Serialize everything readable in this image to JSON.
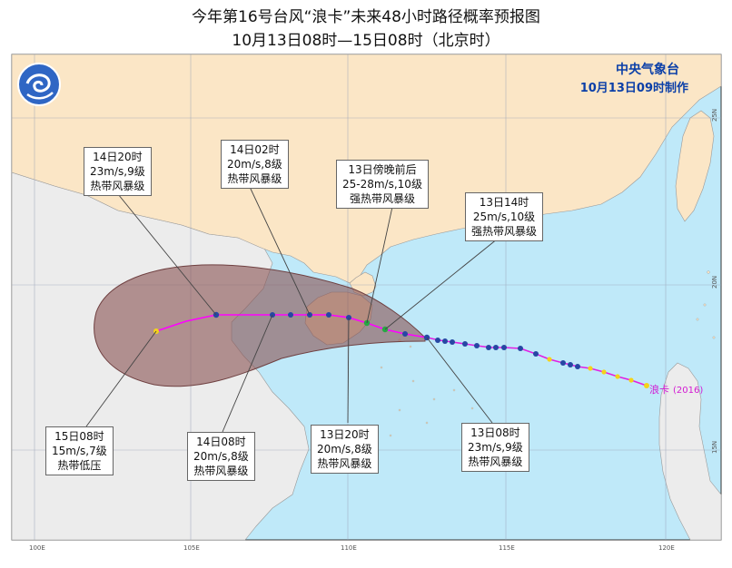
{
  "title": {
    "line1": "今年第16号台风“浪卡”未来48小时路径概率预报图",
    "line2": "10月13日08时—15日08时（北京时）"
  },
  "agency": "中央气象台",
  "issued": "10月13日09时制作",
  "typhoon_label": "浪卡",
  "typhoon_number": "(2016)",
  "lon_labels": [
    "100E",
    "105E",
    "110E",
    "115E",
    "120E"
  ],
  "lat_labels": [
    "25N",
    "20N",
    "15N"
  ],
  "colors": {
    "land": "#fbe6c6",
    "foreign_land": "#ececec",
    "sea": "#bfe9f9",
    "probability_cone": "#8a5556",
    "track_observed": "#e11fe3",
    "track_forecast": "#ff00ff",
    "point_blue": "#2647a3",
    "point_green": "#27a844",
    "point_yellow": "#f5d21a",
    "agency_text": "#0b3fa8"
  },
  "callouts": [
    {
      "id": "14d20",
      "time": "14日20时",
      "wind": "23m/s,9级",
      "grade": "热带风暴级"
    },
    {
      "id": "14d02",
      "time": "14日02时",
      "wind": "20m/s,8级",
      "grade": "热带风暴级"
    },
    {
      "id": "13dusk",
      "time": "13日傍晚前后",
      "wind": "25-28m/s,10级",
      "grade": "强热带风暴级"
    },
    {
      "id": "13d14",
      "time": "13日14时",
      "wind": "25m/s,10级",
      "grade": "强热带风暴级"
    },
    {
      "id": "15d08",
      "time": "15日08时",
      "wind": "15m/s,7级",
      "grade": "热带低压"
    },
    {
      "id": "14d08",
      "time": "14日08时",
      "wind": "20m/s,8级",
      "grade": "热带风暴级"
    },
    {
      "id": "13d20",
      "time": "13日20时",
      "wind": "20m/s,8级",
      "grade": "热带风暴级"
    },
    {
      "id": "13d08",
      "time": "13日08时",
      "wind": "23m/s,9级",
      "grade": "热带风暴级"
    }
  ]
}
